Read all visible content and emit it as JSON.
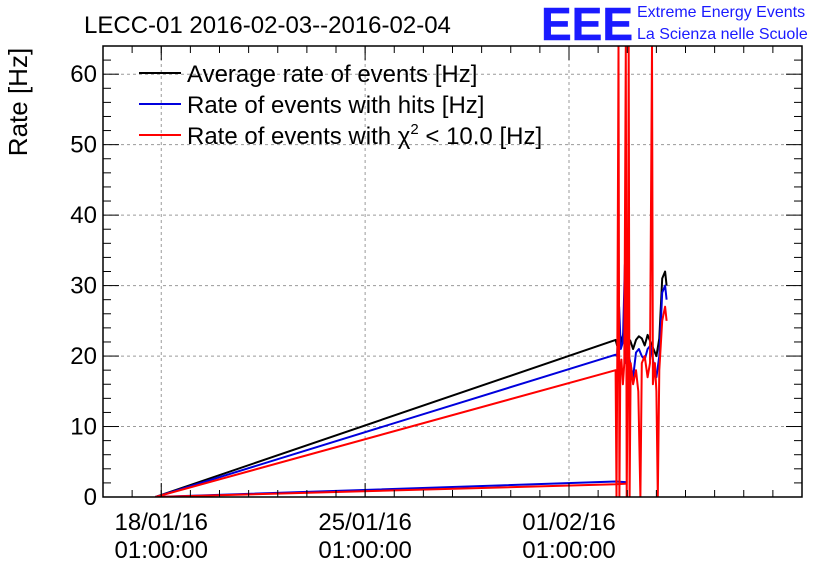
{
  "chart_data": {
    "type": "line",
    "title": "LECC-01 2016-02-03--2016-02-04",
    "ylabel": "Rate [Hz]",
    "xlabel": "",
    "ylim": [
      0,
      64
    ],
    "yticks": [
      0,
      10,
      20,
      30,
      40,
      50,
      60
    ],
    "xlim": [
      "2016-01-16",
      "2016-02-09"
    ],
    "xticks": [
      {
        "date": "2016-01-18",
        "line1": "18/01/16",
        "line2": "01:00:00"
      },
      {
        "date": "2016-01-25",
        "line1": "25/01/16",
        "line2": "01:00:00"
      },
      {
        "date": "2016-02-01",
        "line1": "01/02/16",
        "line2": "01:00:00"
      }
    ],
    "grid": true,
    "legend": {
      "position": "top-left",
      "entries": [
        {
          "label_main": "Average rate of events [Hz]",
          "label_sup": "",
          "label_tail": "",
          "color": "#000000"
        },
        {
          "label_main": "Rate of events with hits [Hz]",
          "label_sup": "",
          "label_tail": "",
          "color": "#0000dd"
        },
        {
          "label_main": "Rate of events with χ",
          "label_sup": "2",
          "label_tail": " < 10.0 [Hz]",
          "color": "#ff0000"
        }
      ]
    },
    "series": [
      {
        "color": "#000000",
        "points": [
          [
            "2016-01-17.8",
            0
          ],
          [
            "2016-02-02.6",
            22.3
          ],
          [
            "2016-02-02.65",
            21.5
          ],
          [
            "2016-02-02.72",
            23.5
          ],
          [
            "2016-02-02.8",
            22.0
          ],
          [
            "2016-02-02.9",
            23.8
          ],
          [
            "2016-02-03.0",
            22.5
          ],
          [
            "2016-02-03.1",
            22.2
          ],
          [
            "2016-02-03.2",
            21.0
          ],
          [
            "2016-02-03.3",
            22.3
          ],
          [
            "2016-02-03.4",
            22.8
          ],
          [
            "2016-02-03.5",
            22.5
          ],
          [
            "2016-02-03.6",
            21.5
          ],
          [
            "2016-02-03.7",
            23.0
          ],
          [
            "2016-02-03.8",
            22.0
          ],
          [
            "2016-02-03.9",
            21.0
          ],
          [
            "2016-02-04.0",
            20.0
          ],
          [
            "2016-02-04.1",
            22.5
          ],
          [
            "2016-02-04.2",
            31.0
          ],
          [
            "2016-02-04.3",
            32.0
          ],
          [
            "2016-02-04.35",
            30.0
          ]
        ]
      },
      {
        "color": "#0000dd",
        "points": [
          [
            "2016-01-17.8",
            0
          ],
          [
            "2016-02-02.6",
            20.2
          ],
          [
            "2016-02-02.65",
            20.0
          ],
          [
            "2016-02-02.72",
            27.0
          ],
          [
            "2016-02-02.78",
            21.0
          ],
          [
            "2016-02-02.85",
            22.0
          ],
          [
            "2016-02-02.92",
            33.0
          ],
          [
            "2016-02-02.95",
            19.0
          ],
          [
            "2016-02-03.0",
            21.5
          ],
          [
            "2016-02-03.1",
            19.0
          ],
          [
            "2016-02-03.2",
            17.0
          ],
          [
            "2016-02-03.3",
            20.5
          ],
          [
            "2016-02-03.4",
            21.0
          ],
          [
            "2016-02-03.5",
            20.0
          ],
          [
            "2016-02-03.6",
            19.5
          ],
          [
            "2016-02-03.7",
            21.0
          ],
          [
            "2016-02-03.8",
            21.5
          ],
          [
            "2016-02-03.9",
            19.0
          ],
          [
            "2016-02-04.0",
            17.0
          ],
          [
            "2016-02-04.1",
            20.0
          ],
          [
            "2016-02-04.2",
            29.0
          ],
          [
            "2016-02-04.3",
            30.0
          ],
          [
            "2016-02-04.35",
            28.0
          ]
        ]
      },
      {
        "color": "#0000dd",
        "points": [
          [
            "2016-01-17.8",
            0
          ],
          [
            "2016-02-02.6",
            2.2
          ],
          [
            "2016-02-03.0",
            2.1
          ]
        ]
      },
      {
        "color": "#ff0000",
        "points": [
          [
            "2016-01-17.8",
            0
          ],
          [
            "2016-02-02.6",
            1.8
          ],
          [
            "2016-02-03.0",
            1.9
          ]
        ]
      },
      {
        "color": "#ff0000",
        "points": [
          [
            "2016-01-17.8",
            0
          ],
          [
            "2016-02-02.6",
            18.0
          ],
          [
            "2016-02-02.63",
            0
          ],
          [
            "2016-02-02.66",
            20.0
          ],
          [
            "2016-02-02.7",
            64
          ],
          [
            "2016-02-02.73",
            0
          ],
          [
            "2016-02-02.76",
            18.0
          ],
          [
            "2016-02-02.8",
            19.5
          ],
          [
            "2016-02-02.85",
            16.0
          ],
          [
            "2016-02-02.9",
            19.0
          ],
          [
            "2016-02-02.95",
            64
          ],
          [
            "2016-02-02.98",
            0
          ],
          [
            "2016-02-03.02",
            20.0
          ],
          [
            "2016-02-03.05",
            64
          ],
          [
            "2016-02-03.08",
            0
          ],
          [
            "2016-02-03.12",
            19.0
          ],
          [
            "2016-02-03.2",
            16.0
          ],
          [
            "2016-02-03.3",
            18.0
          ],
          [
            "2016-02-03.38",
            15.0
          ],
          [
            "2016-02-03.45",
            0
          ],
          [
            "2016-02-03.5",
            19.0
          ],
          [
            "2016-02-03.6",
            20.0
          ],
          [
            "2016-02-03.7",
            17.0
          ],
          [
            "2016-02-03.78",
            19.0
          ],
          [
            "2016-02-03.85",
            64
          ],
          [
            "2016-02-03.88",
            16.0
          ],
          [
            "2016-02-03.95",
            19.0
          ],
          [
            "2016-02-04.0",
            15.0
          ],
          [
            "2016-02-04.05",
            0
          ],
          [
            "2016-02-04.1",
            18.0
          ],
          [
            "2016-02-04.2",
            25.0
          ],
          [
            "2016-02-04.3",
            27.0
          ],
          [
            "2016-02-04.35",
            25.0
          ]
        ]
      }
    ]
  },
  "logo": {
    "letters": "EEE",
    "line1": "Extreme Energy Events",
    "line2": "La Scienza nelle Scuole",
    "color": "#1a1aff"
  }
}
